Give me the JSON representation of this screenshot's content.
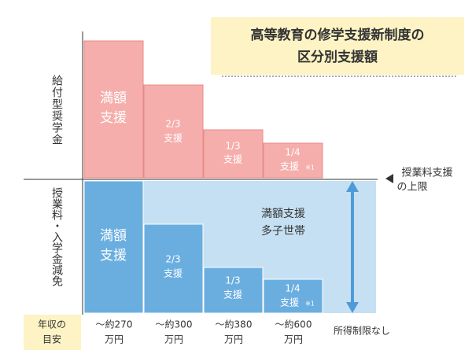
{
  "title": {
    "lines": [
      "高等教育の修学支援新制度の",
      "区分別支援額"
    ]
  },
  "sections": {
    "grant": "給付型奨学金",
    "tuition": "授業料・入学金減免"
  },
  "grant_bars": [
    {
      "lines": [
        "満額",
        "支援"
      ]
    },
    {
      "lines": [
        "2/3",
        "支援"
      ]
    },
    {
      "lines": [
        "1/3",
        "支援"
      ]
    },
    {
      "lines": [
        "1/4",
        "支援"
      ],
      "note": "※1"
    }
  ],
  "tuition_bars": [
    {
      "lines": [
        "満額",
        "支援"
      ]
    },
    {
      "lines": [
        "2/3",
        "支援"
      ]
    },
    {
      "lines": [
        "1/3",
        "支援"
      ]
    },
    {
      "lines": [
        "1/4",
        "支援"
      ],
      "note": "※1"
    }
  ],
  "multi_child": {
    "lines": [
      "満額支援",
      "多子世帯"
    ]
  },
  "tuition_cap": {
    "lines": [
      "授業料支援",
      "の上限"
    ]
  },
  "income": {
    "label": [
      "年収の",
      "目安"
    ],
    "levels": [
      [
        "〜約270",
        "万円"
      ],
      [
        "〜約300",
        "万円"
      ],
      [
        "〜約380",
        "万円"
      ],
      [
        "〜約600",
        "万円"
      ]
    ],
    "no_limit": "所得制限なし"
  }
}
